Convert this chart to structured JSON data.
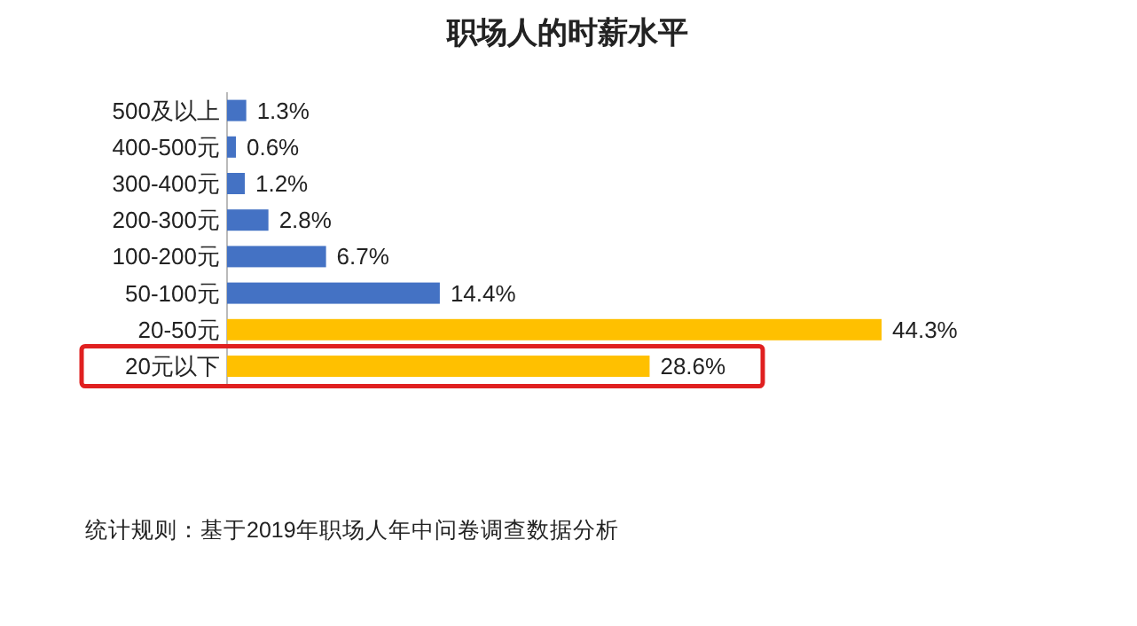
{
  "chart_data": {
    "type": "bar",
    "orientation": "horizontal",
    "title": "职场人的时薪水平",
    "categories": [
      "500及以上",
      "400-500元",
      "300-400元",
      "200-300元",
      "100-200元",
      "50-100元",
      "20-50元",
      "20元以下"
    ],
    "values": [
      1.3,
      0.6,
      1.2,
      2.8,
      6.7,
      14.4,
      44.3,
      28.6
    ],
    "colors": [
      "#4472c4",
      "#4472c4",
      "#4472c4",
      "#4472c4",
      "#4472c4",
      "#4472c4",
      "#ffc000",
      "#ffc000"
    ],
    "value_labels": [
      "1.3%",
      "0.6%",
      "1.2%",
      "2.8%",
      "6.7%",
      "14.4%",
      "44.3%",
      "28.6%"
    ],
    "annotations": [
      "统计规则：基于2019年职场人年中问卷调查数据分析"
    ]
  }
}
